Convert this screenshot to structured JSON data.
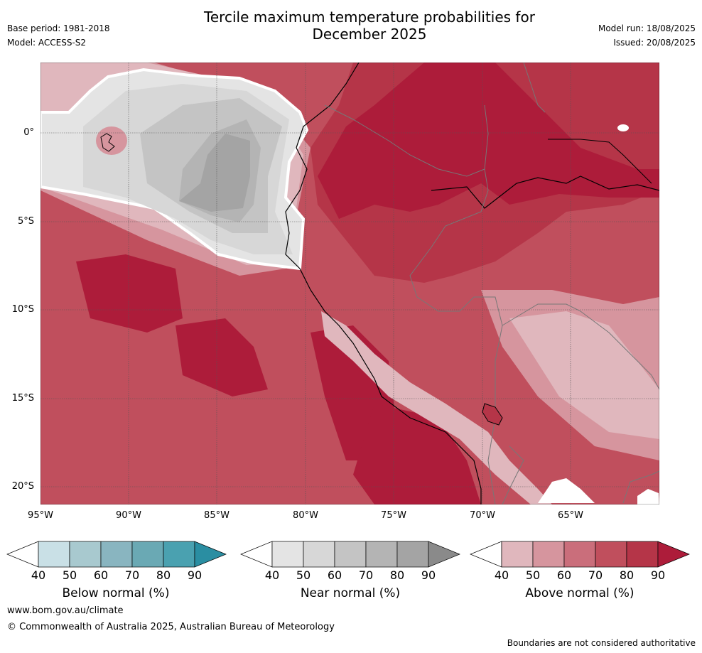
{
  "header": {
    "title_line1": "Tercile maximum temperature probabilities for",
    "title_line2": "December 2025",
    "base_period": "Base period: 1981-2018",
    "model": "Model: ACCESS-S2",
    "model_run": "Model run: 18/08/2025",
    "issued": "Issued: 20/08/2025"
  },
  "map": {
    "lat_labels": [
      "0°",
      "5°S",
      "10°S",
      "15°S",
      "20°S"
    ],
    "lon_labels": [
      "95°W",
      "90°W",
      "85°W",
      "80°W",
      "75°W",
      "70°W",
      "65°W"
    ],
    "colors": {
      "above_40": "#e0b7bd",
      "above_50": "#d6959e",
      "above_60": "#ca6e7b",
      "above_70": "#c04f5d",
      "above_80": "#b53548",
      "above_90": "#ad1c3a",
      "near_40": "#e4e4e4",
      "near_50": "#d7d7d7",
      "near_60": "#c4c4c4",
      "near_70": "#b4b4b4",
      "near_80": "#a4a4a4",
      "near_90": "#8a8a8a"
    }
  },
  "colorbars": {
    "below": {
      "label": "Below normal (%)",
      "ticks": [
        "40",
        "50",
        "60",
        "70",
        "80",
        "90"
      ],
      "colors": [
        "#c9e0e6",
        "#a8c9cf",
        "#89b5c0",
        "#6aa9b4",
        "#4aa1b0",
        "#2a8ea2"
      ]
    },
    "near": {
      "label": "Near normal (%)",
      "ticks": [
        "40",
        "50",
        "60",
        "70",
        "80",
        "90"
      ],
      "colors": [
        "#e4e4e4",
        "#d7d7d7",
        "#c4c4c4",
        "#b4b4b4",
        "#a4a4a4",
        "#8a8a8a"
      ]
    },
    "above": {
      "label": "Above normal (%)",
      "ticks": [
        "40",
        "50",
        "60",
        "70",
        "80",
        "90"
      ],
      "colors": [
        "#e0b7bd",
        "#d6959e",
        "#ca6e7b",
        "#c04f5d",
        "#b53548",
        "#ad1c3a"
      ]
    }
  },
  "footer": {
    "website": "www.bom.gov.au/climate",
    "copyright": "© Commonwealth of Australia 2025, Australian Bureau of Meteorology",
    "disclaimer": "Boundaries are not considered authoritative"
  }
}
